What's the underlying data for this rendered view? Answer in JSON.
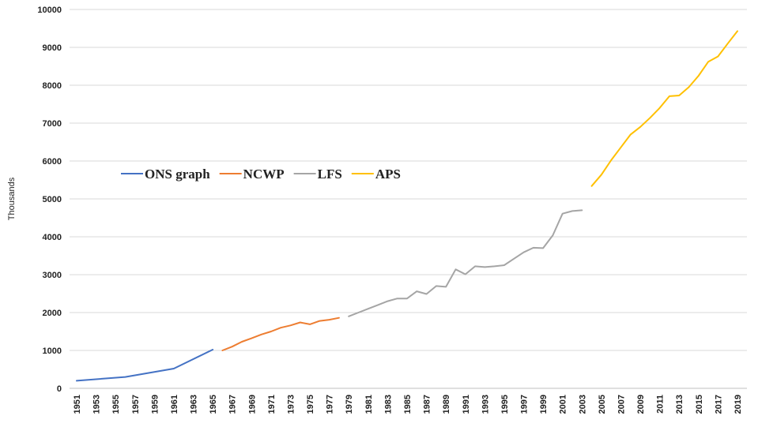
{
  "chart_data": {
    "type": "line",
    "title": "",
    "xlabel": "",
    "ylabel": "Thousands",
    "ylim": [
      0,
      10000
    ],
    "yticks": [
      0,
      1000,
      2000,
      3000,
      4000,
      5000,
      6000,
      7000,
      8000,
      9000,
      10000
    ],
    "xlim": [
      1951,
      2019
    ],
    "xticks": [
      1951,
      1953,
      1955,
      1957,
      1959,
      1961,
      1963,
      1965,
      1967,
      1969,
      1971,
      1973,
      1975,
      1977,
      1979,
      1981,
      1983,
      1985,
      1987,
      1989,
      1991,
      1993,
      1995,
      1997,
      1999,
      2001,
      2003,
      2005,
      2007,
      2009,
      2011,
      2013,
      2015,
      2017,
      2019
    ],
    "grid": "horizontal",
    "legend": "middle-left",
    "series": [
      {
        "name": "ONS graph",
        "color": "#4472C4",
        "x": [
          1951,
          1956,
          1961,
          1965
        ],
        "y": [
          200,
          300,
          520,
          1020
        ]
      },
      {
        "name": "NCWP",
        "color": "#ED7D31",
        "x": [
          1966,
          1967,
          1968,
          1969,
          1970,
          1971,
          1972,
          1973,
          1974,
          1975,
          1976,
          1977,
          1978
        ],
        "y": [
          1000,
          1100,
          1230,
          1320,
          1420,
          1500,
          1600,
          1660,
          1740,
          1690,
          1780,
          1810,
          1860
        ]
      },
      {
        "name": "LFS",
        "color": "#A5A5A5",
        "x": [
          1979,
          1980,
          1981,
          1982,
          1983,
          1984,
          1985,
          1986,
          1987,
          1988,
          1989,
          1990,
          1991,
          1992,
          1993,
          1994,
          1995,
          1996,
          1997,
          1998,
          1999,
          2000,
          2001,
          2002,
          2003
        ],
        "y": [
          1900,
          2000,
          2100,
          2200,
          2300,
          2370,
          2370,
          2560,
          2490,
          2700,
          2680,
          3140,
          3010,
          3220,
          3200,
          3220,
          3250,
          3420,
          3590,
          3710,
          3700,
          4040,
          4610,
          4680,
          4700
        ]
      },
      {
        "name": "APS",
        "color": "#FFC000",
        "x": [
          2004,
          2005,
          2006,
          2007,
          2008,
          2009,
          2010,
          2011,
          2012,
          2013,
          2014,
          2015,
          2016,
          2017,
          2018,
          2019
        ],
        "y": [
          5340,
          5640,
          6020,
          6360,
          6700,
          6900,
          7140,
          7400,
          7710,
          7730,
          7950,
          8250,
          8620,
          8760,
          9100,
          9430
        ]
      }
    ]
  }
}
